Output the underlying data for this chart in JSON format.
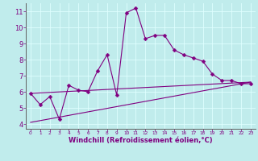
{
  "xlabel": "Windchill (Refroidissement éolien,°C)",
  "bg_color": "#c0ecec",
  "grid_color": "#dfffff",
  "line_color": "#800080",
  "axis_color": "#606060",
  "xlim": [
    -0.5,
    23.5
  ],
  "ylim": [
    3.7,
    11.5
  ],
  "yticks": [
    4,
    5,
    6,
    7,
    8,
    9,
    10,
    11
  ],
  "xticks": [
    0,
    1,
    2,
    3,
    4,
    5,
    6,
    7,
    8,
    9,
    10,
    11,
    12,
    13,
    14,
    15,
    16,
    17,
    18,
    19,
    20,
    21,
    22,
    23
  ],
  "line1_x": [
    0,
    1,
    2,
    3,
    4,
    5,
    6,
    7,
    8,
    9,
    10,
    11,
    12,
    13,
    14,
    15,
    16,
    17,
    18,
    19,
    20,
    21,
    22,
    23
  ],
  "line1_y": [
    5.9,
    5.2,
    5.7,
    4.3,
    6.4,
    6.1,
    6.0,
    7.3,
    8.3,
    5.8,
    10.9,
    11.2,
    9.3,
    9.5,
    9.5,
    8.6,
    8.3,
    8.1,
    7.9,
    7.1,
    6.7,
    6.7,
    6.5,
    6.5
  ],
  "line2_x": [
    0,
    23
  ],
  "line2_y": [
    5.9,
    6.6
  ],
  "line3_x": [
    0,
    23
  ],
  "line3_y": [
    4.1,
    6.6
  ],
  "markersize": 2.5,
  "linewidth": 0.8,
  "xlabel_fontsize": 6.0,
  "tick_fontsize_x": 4.2,
  "tick_fontsize_y": 6.0
}
